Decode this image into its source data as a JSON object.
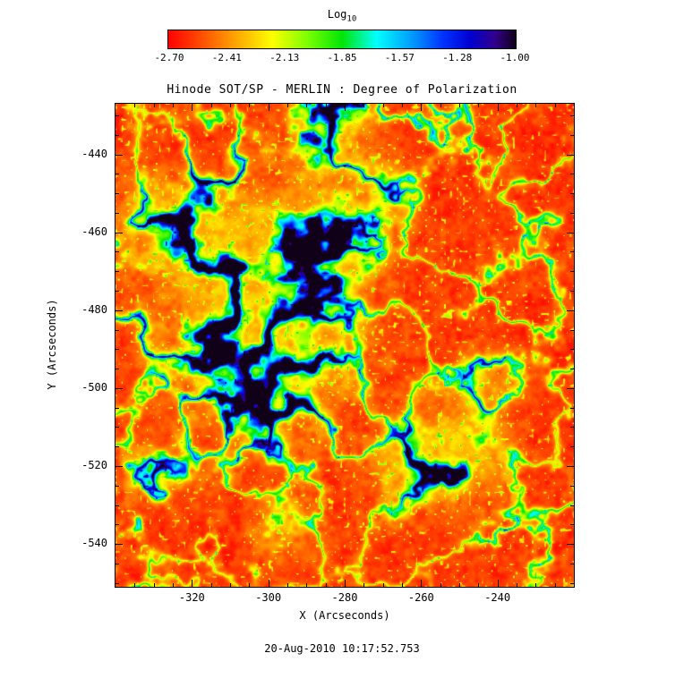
{
  "colorbar": {
    "label_main": "Log",
    "label_sub": "10",
    "ticks": [
      "-2.70",
      "-2.41",
      "-2.13",
      "-1.85",
      "-1.57",
      "-1.28",
      "-1.00"
    ]
  },
  "timestamp": "20-Aug-2010 10:17:52.753",
  "chart_data": {
    "type": "heatmap",
    "title": "Hinode SOT/SP - MERLIN : Degree of Polarization",
    "xlabel": "X (Arcseconds)",
    "ylabel": "Y (Arcseconds)",
    "x_range": [
      -340,
      -220
    ],
    "y_range": [
      -551,
      -427
    ],
    "x_ticks": [
      "-320",
      "-300",
      "-280",
      "-260",
      "-240"
    ],
    "y_ticks": [
      "-440",
      "-460",
      "-480",
      "-500",
      "-520",
      "-540"
    ],
    "major_tick_step": 20,
    "minor_tick_step": 5,
    "scale_label": "Log10",
    "value_range": [
      -2.7,
      -1.0
    ],
    "colorbar_ticks": [
      "-2.70",
      "-2.41",
      "-2.13",
      "-1.85",
      "-1.57",
      "-1.28",
      "-1.00"
    ],
    "colormap": [
      {
        "pos": 0.0,
        "color": "#ff0000"
      },
      {
        "pos": 0.1,
        "color": "#ff5200"
      },
      {
        "pos": 0.2,
        "color": "#ffaa00"
      },
      {
        "pos": 0.3,
        "color": "#fdff00"
      },
      {
        "pos": 0.4,
        "color": "#7dff00"
      },
      {
        "pos": 0.5,
        "color": "#00e606"
      },
      {
        "pos": 0.6,
        "color": "#00ffff"
      },
      {
        "pos": 0.7,
        "color": "#009dff"
      },
      {
        "pos": 0.79,
        "color": "#0033ff"
      },
      {
        "pos": 0.87,
        "color": "#0000d0"
      },
      {
        "pos": 0.94,
        "color": "#32008c"
      },
      {
        "pos": 1.0,
        "color": "#100018"
      }
    ],
    "background_level": "most of field near -2.70 (red) with granular orange/yellow speckle",
    "network_description": "web-like lanes of enhanced polarization (green/cyan) outlining granulation, with strong blue/navy magnetic patches",
    "high_regions": [
      {
        "x": -305,
        "y": -480,
        "r": 16,
        "s": 1.0
      },
      {
        "x": -310,
        "y": -465,
        "r": 10,
        "s": 0.9
      },
      {
        "x": -288,
        "y": -462,
        "r": 11,
        "s": 0.9
      },
      {
        "x": -298,
        "y": -498,
        "r": 10,
        "s": 0.9
      },
      {
        "x": -258,
        "y": -519,
        "r": 9,
        "s": 0.95
      },
      {
        "x": -247,
        "y": -515,
        "r": 7,
        "s": 0.8
      },
      {
        "x": -326,
        "y": -457,
        "r": 8,
        "s": 0.7
      },
      {
        "x": -283,
        "y": -431,
        "r": 7,
        "s": 0.8
      },
      {
        "x": -270,
        "y": -449,
        "r": 6,
        "s": 0.5
      },
      {
        "x": -243,
        "y": -497,
        "r": 5,
        "s": 0.6
      },
      {
        "x": -330,
        "y": -521,
        "r": 6,
        "s": 0.5
      },
      {
        "x": -295,
        "y": -536,
        "r": 6,
        "s": 0.45
      }
    ],
    "render": {
      "seed": 9,
      "fine_scale": 6.5,
      "fine_scale2": 17,
      "web_scale": 52,
      "mask_scale": 120,
      "speckle_scale": 3.5
    }
  }
}
